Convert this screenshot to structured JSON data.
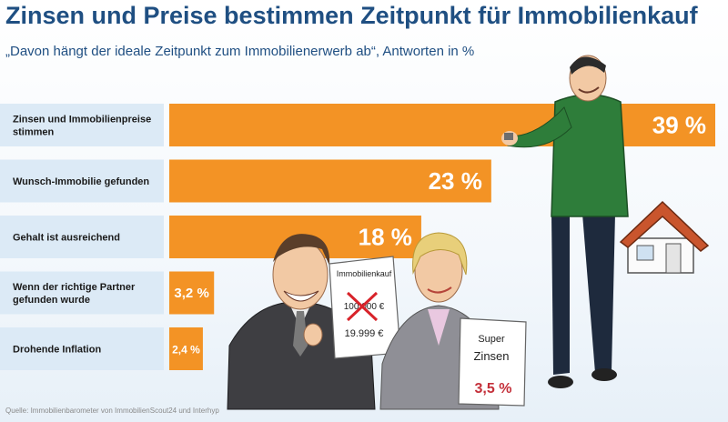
{
  "chart_data": {
    "type": "bar",
    "orientation": "horizontal",
    "title": "Zinsen und Preise bestimmen Zeitpunkt für Immobilienkauf",
    "subtitle": "„Davon hängt der ideale Zeitpunkt zum Immobilienerwerb ab“, Antworten in %",
    "categories": [
      [
        "Zinsen und Immobilienpreise",
        "stimmen"
      ],
      [
        "Wunsch-Immobilie gefunden"
      ],
      [
        "Gehalt ist ausreichend"
      ],
      [
        "Wenn der richtige Partner",
        "gefunden wurde"
      ],
      [
        "Drohende Inflation"
      ]
    ],
    "values": [
      39,
      23,
      18,
      3.2,
      2.4
    ],
    "value_labels": [
      "39 %",
      "23 %",
      "18 %",
      "3,2 %",
      "2,4 %"
    ],
    "xlim": [
      0,
      39
    ],
    "bar_color": "#f39325",
    "grid": false,
    "legend": "none"
  },
  "source": "Quelle: Immobilienbarometer von ImmobilienScout24 und Interhyp",
  "illustration": {
    "sign_title": "Immobilienkauf",
    "old_price": "100.000 €",
    "new_price": "19.999 €",
    "super_label": "Super",
    "zinsen_label": "Zinsen",
    "rate_label": "3,5 %"
  },
  "colors": {
    "title": "#1f4f82",
    "row_background": "#dceaf6",
    "cross": "#d8232a",
    "shirt": "#2e7d3a"
  }
}
